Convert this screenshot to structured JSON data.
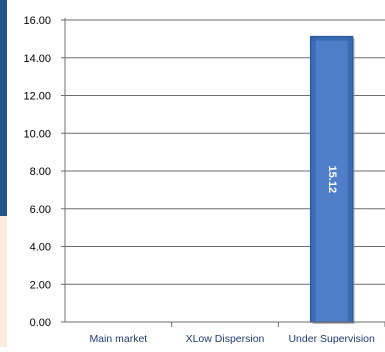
{
  "colors": {
    "accent_left": "#24548b",
    "panel_left": "#fbece2",
    "axis_text": "#000000",
    "category_text": "#1f3a7a",
    "grid": "#6e6e6e",
    "bar_fill": "#4f7fc8",
    "bar_dark": "#2d5da4"
  },
  "chart_data": {
    "type": "bar",
    "categories": [
      "Main market",
      "XLow Dispersion",
      "Under Supervision"
    ],
    "values": [
      0,
      0,
      15.12
    ],
    "data_labels": [
      "",
      "",
      "15.12"
    ],
    "ylim": [
      0,
      16
    ],
    "yticks": [
      "0.00",
      "2.00",
      "4.00",
      "6.00",
      "8.00",
      "10.00",
      "12.00",
      "14.00",
      "16.00"
    ],
    "grid": true,
    "title": "",
    "xlabel": "",
    "ylabel": ""
  }
}
